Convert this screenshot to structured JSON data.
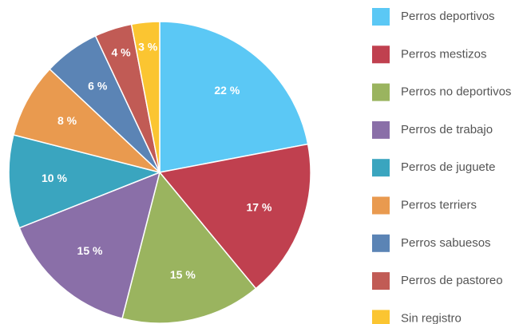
{
  "chart_data": {
    "type": "pie",
    "categories": [
      "Perros deportivos",
      "Perros mestizos",
      "Perros no deportivos",
      "Perros de trabajo",
      "Perros de juguete",
      "Perros terriers",
      "Perros sabuesos",
      "Perros de pastoreo",
      "Sin registro"
    ],
    "values": [
      22,
      17,
      15,
      15,
      10,
      8,
      6,
      4,
      3
    ],
    "value_labels": [
      "22 %",
      "17 %",
      "15 %",
      "15 %",
      "10 %",
      "8 %",
      "6 %",
      "4 %",
      "3 %"
    ],
    "colors": [
      "#5bc8f5",
      "#c0404f",
      "#9ab45f",
      "#8a6fa8",
      "#3aa5bf",
      "#e99a4f",
      "#5b84b5",
      "#c15b55",
      "#fbc531"
    ],
    "legend": "right"
  }
}
